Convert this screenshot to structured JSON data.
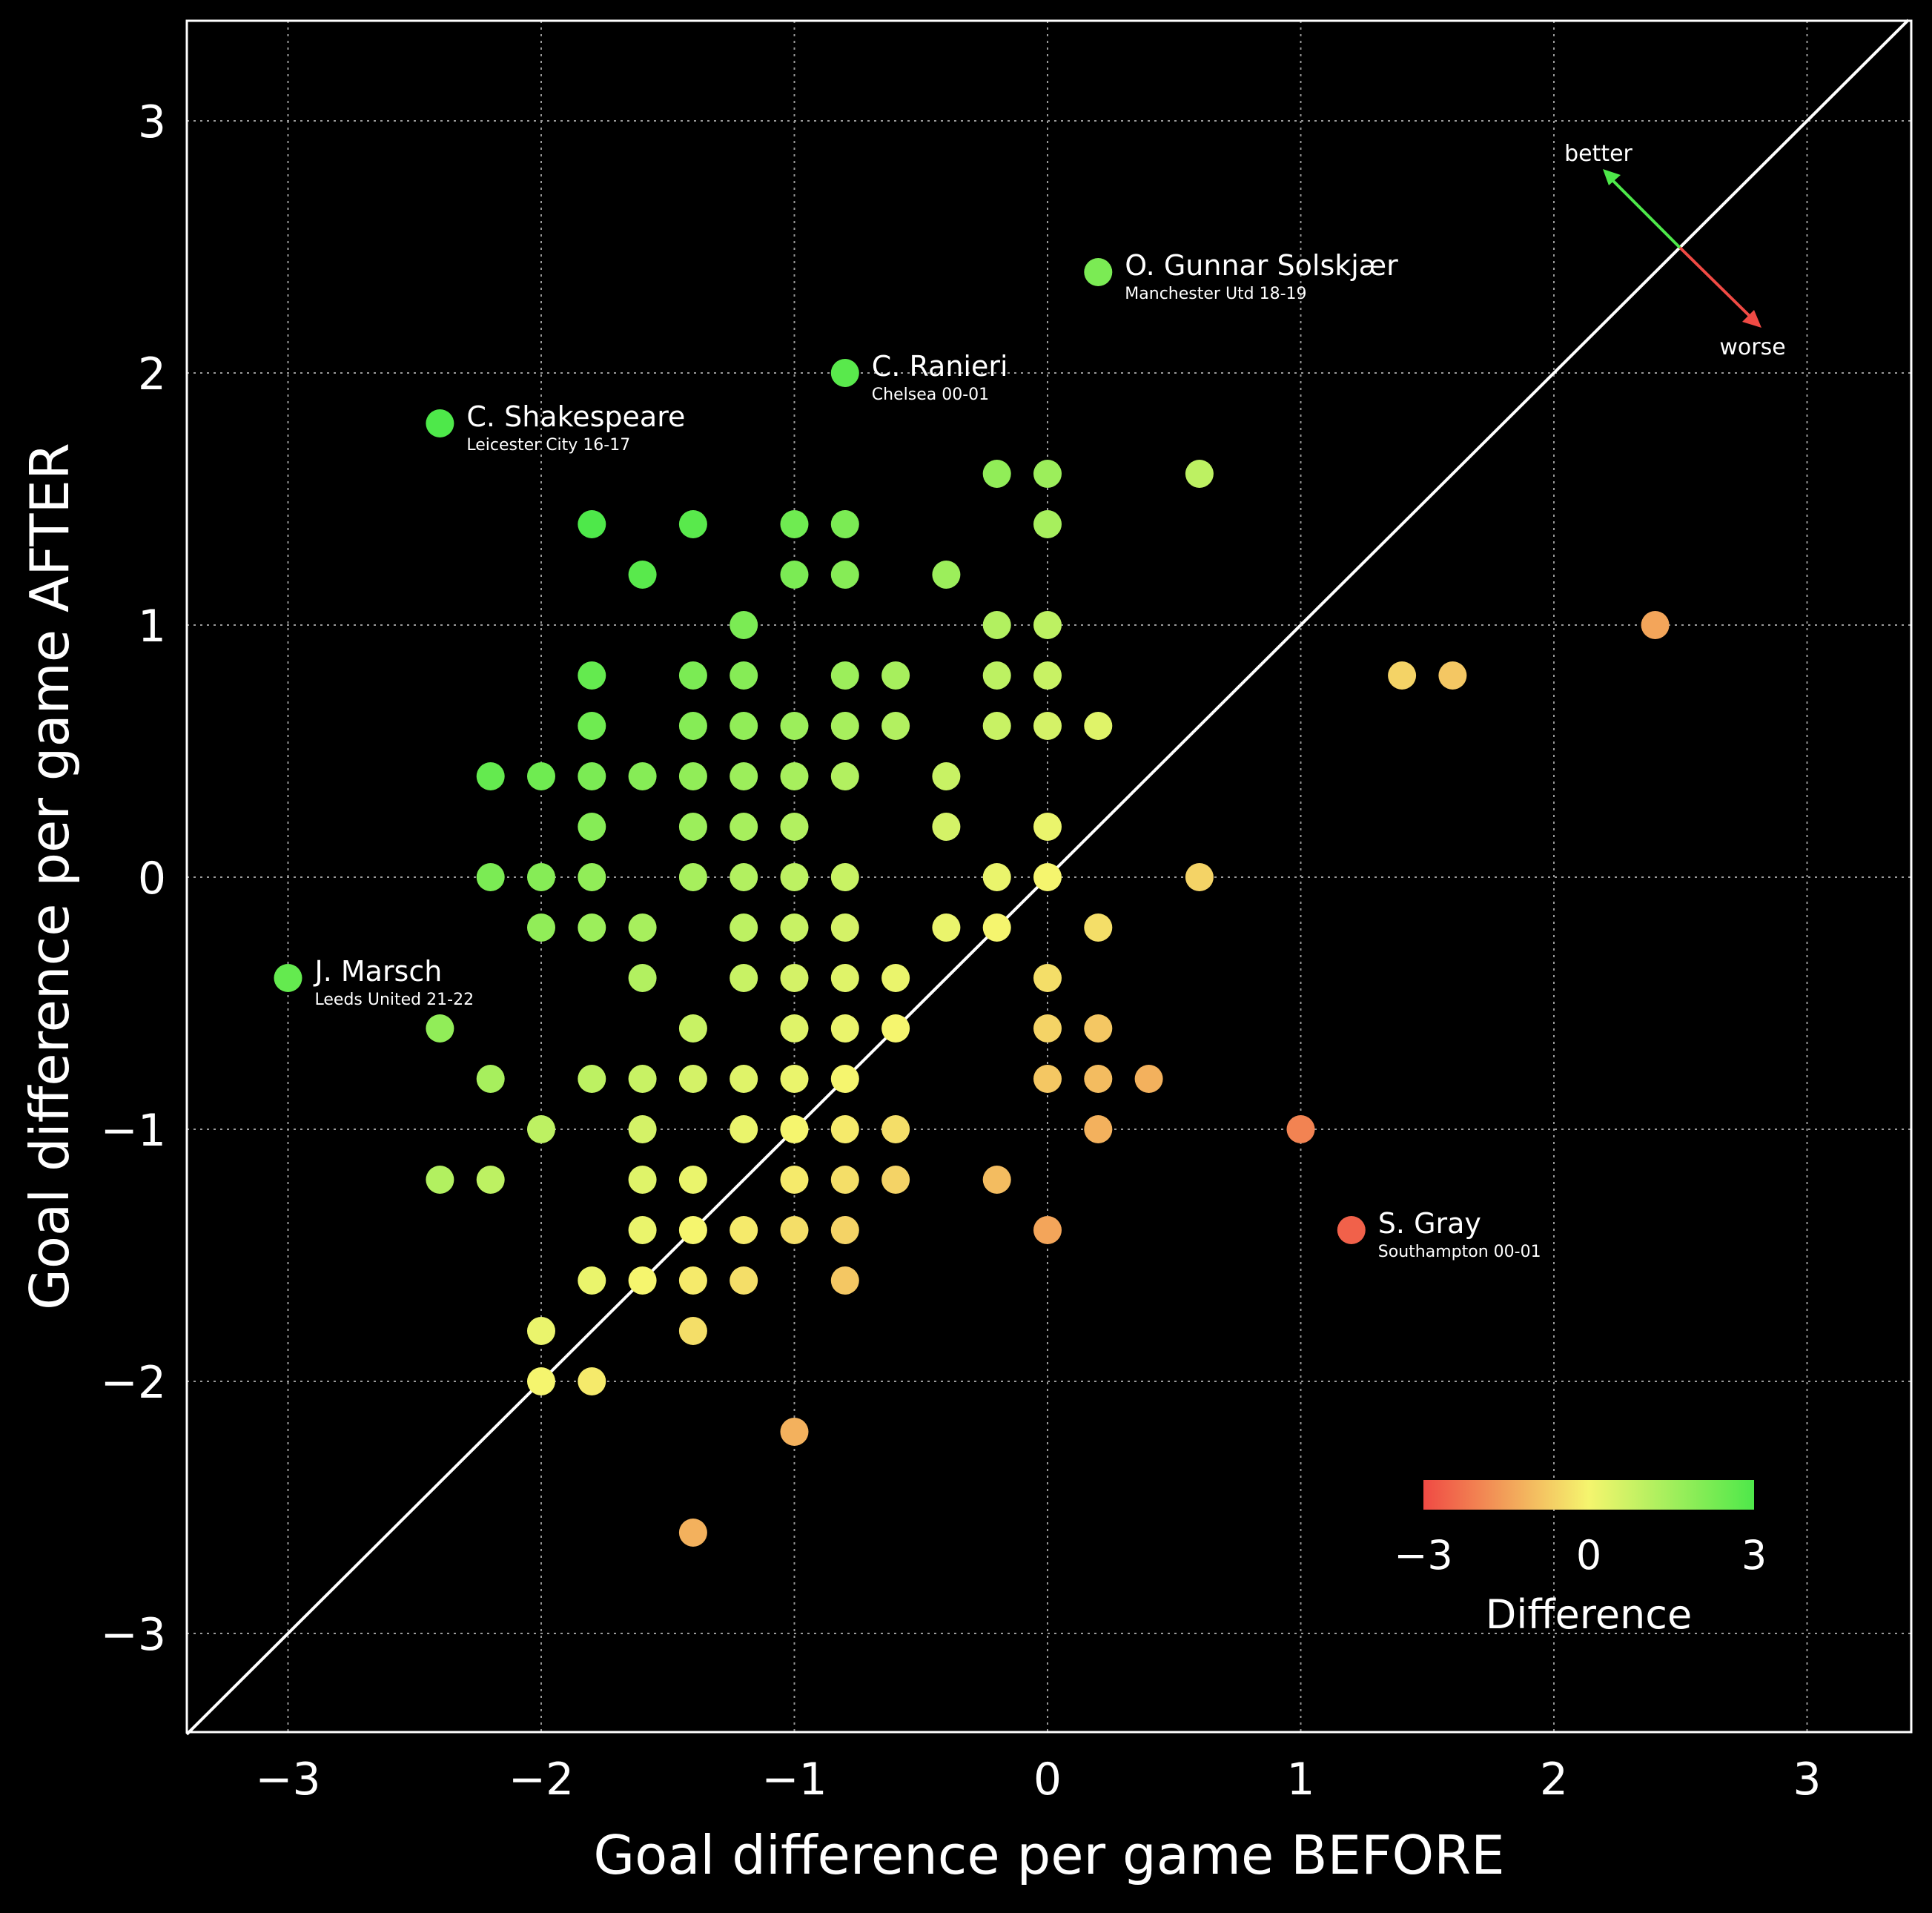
{
  "chart_data": {
    "type": "scatter",
    "xlabel": "Goal difference per game BEFORE",
    "ylabel": "Goal difference per game AFTER",
    "xlim": [
      -3.4,
      3.4
    ],
    "ylim": [
      -3.4,
      3.4
    ],
    "xticks": [
      "−3",
      "−2",
      "−1",
      "0",
      "1",
      "2",
      "3"
    ],
    "yticks": [
      "3",
      "2",
      "1",
      "0",
      "−1",
      "−2",
      "−3"
    ],
    "grid": true,
    "reference_line": "y = x",
    "colorbar": {
      "title": "Difference",
      "ticks": [
        "−3",
        "0",
        "3"
      ],
      "range": [
        -3,
        3
      ],
      "colors": [
        "#f04a44",
        "#f5f56e",
        "#4ee84a"
      ]
    },
    "direction_arrows": {
      "better": "better",
      "worse": "worse",
      "better_color": "#4ee84a",
      "worse_color": "#f04a44"
    },
    "points": [
      {
        "x": 0.2,
        "y": 2.4
      },
      {
        "x": -0.8,
        "y": 2.0
      },
      {
        "x": -2.4,
        "y": 1.8
      },
      {
        "x": -3.0,
        "y": -0.4
      },
      {
        "x": 1.2,
        "y": -1.4
      },
      {
        "x": -0.2,
        "y": 1.6
      },
      {
        "x": 0.0,
        "y": 1.6
      },
      {
        "x": 0.6,
        "y": 1.6
      },
      {
        "x": -1.8,
        "y": 1.4
      },
      {
        "x": -1.4,
        "y": 1.4
      },
      {
        "x": -1.0,
        "y": 1.4
      },
      {
        "x": -0.8,
        "y": 1.4
      },
      {
        "x": 0.0,
        "y": 1.4
      },
      {
        "x": -1.6,
        "y": 1.2
      },
      {
        "x": -1.0,
        "y": 1.2
      },
      {
        "x": -0.8,
        "y": 1.2
      },
      {
        "x": -0.4,
        "y": 1.2
      },
      {
        "x": -1.2,
        "y": 1.0
      },
      {
        "x": -0.2,
        "y": 1.0
      },
      {
        "x": 0.0,
        "y": 1.0
      },
      {
        "x": 2.4,
        "y": 1.0
      },
      {
        "x": -1.8,
        "y": 0.8
      },
      {
        "x": -1.4,
        "y": 0.8
      },
      {
        "x": -1.2,
        "y": 0.8
      },
      {
        "x": -0.8,
        "y": 0.8
      },
      {
        "x": -0.6,
        "y": 0.8
      },
      {
        "x": -0.2,
        "y": 0.8
      },
      {
        "x": 0.0,
        "y": 0.8
      },
      {
        "x": 1.4,
        "y": 0.8
      },
      {
        "x": 1.6,
        "y": 0.8
      },
      {
        "x": -1.8,
        "y": 0.6
      },
      {
        "x": -1.4,
        "y": 0.6
      },
      {
        "x": -1.2,
        "y": 0.6
      },
      {
        "x": -1.0,
        "y": 0.6
      },
      {
        "x": -0.8,
        "y": 0.6
      },
      {
        "x": -0.6,
        "y": 0.6
      },
      {
        "x": -0.2,
        "y": 0.6
      },
      {
        "x": 0.0,
        "y": 0.6
      },
      {
        "x": 0.2,
        "y": 0.6
      },
      {
        "x": -2.2,
        "y": 0.4
      },
      {
        "x": -2.0,
        "y": 0.4
      },
      {
        "x": -1.8,
        "y": 0.4
      },
      {
        "x": -1.6,
        "y": 0.4
      },
      {
        "x": -1.4,
        "y": 0.4
      },
      {
        "x": -1.2,
        "y": 0.4
      },
      {
        "x": -1.0,
        "y": 0.4
      },
      {
        "x": -0.8,
        "y": 0.4
      },
      {
        "x": -0.4,
        "y": 0.4
      },
      {
        "x": -1.8,
        "y": 0.2
      },
      {
        "x": -1.4,
        "y": 0.2
      },
      {
        "x": -1.2,
        "y": 0.2
      },
      {
        "x": -1.0,
        "y": 0.2
      },
      {
        "x": -0.4,
        "y": 0.2
      },
      {
        "x": 0.0,
        "y": 0.2
      },
      {
        "x": -2.2,
        "y": 0.0
      },
      {
        "x": -2.0,
        "y": 0.0
      },
      {
        "x": -1.8,
        "y": 0.0
      },
      {
        "x": -1.4,
        "y": 0.0
      },
      {
        "x": -1.2,
        "y": 0.0
      },
      {
        "x": -1.0,
        "y": 0.0
      },
      {
        "x": -0.8,
        "y": 0.0
      },
      {
        "x": -0.2,
        "y": 0.0
      },
      {
        "x": 0.0,
        "y": 0.0
      },
      {
        "x": 0.6,
        "y": 0.0
      },
      {
        "x": -2.0,
        "y": -0.2
      },
      {
        "x": -1.8,
        "y": -0.2
      },
      {
        "x": -1.6,
        "y": -0.2
      },
      {
        "x": -1.2,
        "y": -0.2
      },
      {
        "x": -1.0,
        "y": -0.2
      },
      {
        "x": -0.8,
        "y": -0.2
      },
      {
        "x": -0.4,
        "y": -0.2
      },
      {
        "x": -0.2,
        "y": -0.2
      },
      {
        "x": 0.2,
        "y": -0.2
      },
      {
        "x": -1.6,
        "y": -0.4
      },
      {
        "x": -1.2,
        "y": -0.4
      },
      {
        "x": -1.0,
        "y": -0.4
      },
      {
        "x": -0.8,
        "y": -0.4
      },
      {
        "x": -0.6,
        "y": -0.4
      },
      {
        "x": 0.0,
        "y": -0.4
      },
      {
        "x": -2.4,
        "y": -0.6
      },
      {
        "x": -1.4,
        "y": -0.6
      },
      {
        "x": -1.0,
        "y": -0.6
      },
      {
        "x": -0.8,
        "y": -0.6
      },
      {
        "x": -0.6,
        "y": -0.6
      },
      {
        "x": 0.0,
        "y": -0.6
      },
      {
        "x": 0.2,
        "y": -0.6
      },
      {
        "x": -2.2,
        "y": -0.8
      },
      {
        "x": -1.8,
        "y": -0.8
      },
      {
        "x": -1.6,
        "y": -0.8
      },
      {
        "x": -1.4,
        "y": -0.8
      },
      {
        "x": -1.2,
        "y": -0.8
      },
      {
        "x": -1.0,
        "y": -0.8
      },
      {
        "x": -0.8,
        "y": -0.8
      },
      {
        "x": 0.0,
        "y": -0.8
      },
      {
        "x": 0.2,
        "y": -0.8
      },
      {
        "x": 0.4,
        "y": -0.8
      },
      {
        "x": -2.0,
        "y": -1.0
      },
      {
        "x": -1.6,
        "y": -1.0
      },
      {
        "x": -1.2,
        "y": -1.0
      },
      {
        "x": -1.0,
        "y": -1.0
      },
      {
        "x": -0.8,
        "y": -1.0
      },
      {
        "x": -0.6,
        "y": -1.0
      },
      {
        "x": 0.2,
        "y": -1.0
      },
      {
        "x": 1.0,
        "y": -1.0
      },
      {
        "x": -2.4,
        "y": -1.2
      },
      {
        "x": -2.2,
        "y": -1.2
      },
      {
        "x": -1.6,
        "y": -1.2
      },
      {
        "x": -1.4,
        "y": -1.2
      },
      {
        "x": -1.0,
        "y": -1.2
      },
      {
        "x": -0.8,
        "y": -1.2
      },
      {
        "x": -0.6,
        "y": -1.2
      },
      {
        "x": -0.2,
        "y": -1.2
      },
      {
        "x": -1.6,
        "y": -1.4
      },
      {
        "x": -1.4,
        "y": -1.4
      },
      {
        "x": -1.2,
        "y": -1.4
      },
      {
        "x": -1.0,
        "y": -1.4
      },
      {
        "x": -0.8,
        "y": -1.4
      },
      {
        "x": 0.0,
        "y": -1.4
      },
      {
        "x": -1.8,
        "y": -1.6
      },
      {
        "x": -1.6,
        "y": -1.6
      },
      {
        "x": -1.4,
        "y": -1.6
      },
      {
        "x": -1.2,
        "y": -1.6
      },
      {
        "x": -0.8,
        "y": -1.6
      },
      {
        "x": -2.0,
        "y": -1.8
      },
      {
        "x": -1.4,
        "y": -1.8
      },
      {
        "x": -2.0,
        "y": -2.0
      },
      {
        "x": -1.8,
        "y": -2.0
      },
      {
        "x": -1.0,
        "y": -2.2
      },
      {
        "x": -1.4,
        "y": -2.6
      }
    ],
    "annotations": [
      {
        "x": 0.2,
        "y": 2.4,
        "name": "O. Gunnar Solskjær",
        "team": "Manchester Utd 18-19"
      },
      {
        "x": -0.8,
        "y": 2.0,
        "name": "C. Ranieri",
        "team": "Chelsea 00-01"
      },
      {
        "x": -2.4,
        "y": 1.8,
        "name": "C. Shakespeare",
        "team": "Leicester City 16-17"
      },
      {
        "x": -3.0,
        "y": -0.4,
        "name": "J. Marsch",
        "team": "Leeds United 21-22"
      },
      {
        "x": 1.2,
        "y": -1.4,
        "name": "S. Gray",
        "team": "Southampton 00-01"
      }
    ]
  }
}
